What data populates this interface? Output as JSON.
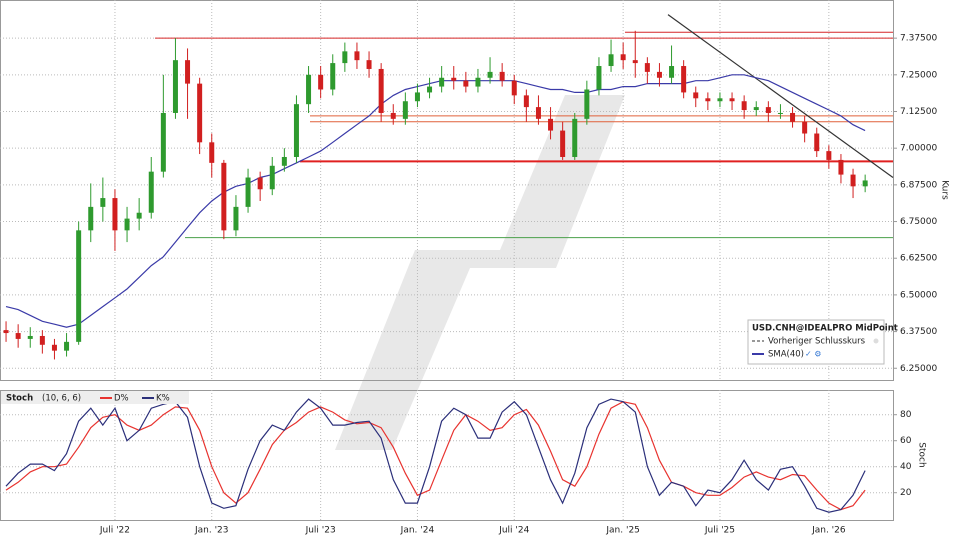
{
  "chart_data": [
    {
      "type": "candlestick",
      "name": "USD.CNH@IDEALPRO MidPoint",
      "previous_close_label": "Vorheriger Schlusskurs",
      "axis_title": "Kurs",
      "up_color": "#2e9a2e",
      "down_color": "#d11f1f",
      "categories": [
        null,
        null,
        null,
        null,
        null,
        null,
        null,
        null,
        null,
        "Juli '22",
        null,
        null,
        null,
        null,
        null,
        null,
        null,
        "Jan. '23",
        null,
        null,
        null,
        null,
        null,
        null,
        null,
        null,
        "Juli '23",
        null,
        null,
        null,
        null,
        null,
        null,
        null,
        "Jan. '24",
        null,
        null,
        null,
        null,
        null,
        null,
        null,
        "Juli '24",
        null,
        null,
        null,
        null,
        null,
        null,
        null,
        null,
        "Jan. '25",
        null,
        null,
        null,
        null,
        null,
        null,
        null,
        "Juli '25",
        null,
        null,
        null,
        null,
        null,
        null,
        null,
        null,
        "Jan. '26",
        null,
        null,
        null
      ],
      "open": [
        6.38,
        6.37,
        6.35,
        6.36,
        6.33,
        6.31,
        6.34,
        6.72,
        6.8,
        6.83,
        6.72,
        6.76,
        6.78,
        6.92,
        7.12,
        7.3,
        7.22,
        7.02,
        6.95,
        6.72,
        6.8,
        6.9,
        6.86,
        6.94,
        6.97,
        7.15,
        7.25,
        7.2,
        7.29,
        7.33,
        7.3,
        7.27,
        7.12,
        7.1,
        7.16,
        7.19,
        7.21,
        7.24,
        7.23,
        7.21,
        7.24,
        7.26,
        7.23,
        7.18,
        7.14,
        7.1,
        7.06,
        6.97,
        7.1,
        7.2,
        7.28,
        7.32,
        7.3,
        7.29,
        7.26,
        7.24,
        7.28,
        7.19,
        7.17,
        7.16,
        7.17,
        7.16,
        7.13,
        7.14,
        7.12,
        7.12,
        7.09,
        7.05,
        6.99,
        6.96,
        6.91,
        6.87
      ],
      "high": [
        6.41,
        6.4,
        6.39,
        6.38,
        6.35,
        6.37,
        6.75,
        6.88,
        6.9,
        6.86,
        6.8,
        6.83,
        6.97,
        7.25,
        7.375,
        7.34,
        7.24,
        7.05,
        6.96,
        6.84,
        6.93,
        6.92,
        6.97,
        7.0,
        7.18,
        7.28,
        7.28,
        7.32,
        7.36,
        7.36,
        7.33,
        7.29,
        7.15,
        7.19,
        7.22,
        7.24,
        7.28,
        7.28,
        7.26,
        7.27,
        7.31,
        7.29,
        7.25,
        7.2,
        7.18,
        7.14,
        7.09,
        7.12,
        7.23,
        7.31,
        7.37,
        7.36,
        7.4,
        7.31,
        7.29,
        7.35,
        7.3,
        7.21,
        7.19,
        7.19,
        7.19,
        7.18,
        7.16,
        7.16,
        7.15,
        7.14,
        7.11,
        7.07,
        7.01,
        6.98,
        6.93,
        6.91
      ],
      "low": [
        6.34,
        6.32,
        6.32,
        6.3,
        6.28,
        6.29,
        6.33,
        6.68,
        6.75,
        6.65,
        6.68,
        6.72,
        6.76,
        6.9,
        7.1,
        7.1,
        6.98,
        6.9,
        6.69,
        6.7,
        6.78,
        6.82,
        6.84,
        6.92,
        6.95,
        7.12,
        7.17,
        7.18,
        7.26,
        7.27,
        7.24,
        7.09,
        7.08,
        7.08,
        7.14,
        7.17,
        7.19,
        7.2,
        7.19,
        7.19,
        7.22,
        7.21,
        7.15,
        7.09,
        7.08,
        7.03,
        6.96,
        6.96,
        7.08,
        7.18,
        7.26,
        7.27,
        7.24,
        7.22,
        7.21,
        7.22,
        7.17,
        7.14,
        7.13,
        7.14,
        7.13,
        7.1,
        7.11,
        7.09,
        7.1,
        7.07,
        7.02,
        6.97,
        6.93,
        6.88,
        6.83,
        6.85
      ],
      "close": [
        6.37,
        6.35,
        6.36,
        6.33,
        6.31,
        6.34,
        6.72,
        6.8,
        6.83,
        6.72,
        6.76,
        6.78,
        6.92,
        7.12,
        7.3,
        7.22,
        7.02,
        6.95,
        6.72,
        6.8,
        6.9,
        6.86,
        6.94,
        6.97,
        7.15,
        7.25,
        7.2,
        7.29,
        7.33,
        7.3,
        7.27,
        7.12,
        7.1,
        7.16,
        7.19,
        7.21,
        7.24,
        7.23,
        7.21,
        7.24,
        7.26,
        7.23,
        7.18,
        7.14,
        7.1,
        7.06,
        6.97,
        7.1,
        7.2,
        7.28,
        7.32,
        7.3,
        7.29,
        7.26,
        7.24,
        7.28,
        7.19,
        7.17,
        7.16,
        7.17,
        7.16,
        7.13,
        7.14,
        7.12,
        7.12,
        7.09,
        7.05,
        6.99,
        6.96,
        6.91,
        6.87,
        6.89
      ],
      "series": [
        {
          "name": "SMA(40)",
          "color": "#3a3aa8",
          "values": [
            6.46,
            6.45,
            6.43,
            6.41,
            6.4,
            6.39,
            6.4,
            6.43,
            6.46,
            6.49,
            6.52,
            6.56,
            6.6,
            6.63,
            6.68,
            6.73,
            6.78,
            6.82,
            6.85,
            6.87,
            6.88,
            6.9,
            6.91,
            6.93,
            6.95,
            6.97,
            6.99,
            7.02,
            7.05,
            7.08,
            7.11,
            7.15,
            7.18,
            7.2,
            7.21,
            7.22,
            7.23,
            7.23,
            7.23,
            7.23,
            7.23,
            7.23,
            7.23,
            7.22,
            7.21,
            7.2,
            7.2,
            7.19,
            7.19,
            7.2,
            7.2,
            7.21,
            7.21,
            7.22,
            7.22,
            7.22,
            7.22,
            7.23,
            7.23,
            7.24,
            7.25,
            7.25,
            7.24,
            7.23,
            7.21,
            7.19,
            7.17,
            7.15,
            7.13,
            7.11,
            7.08,
            7.06
          ]
        }
      ],
      "levels": [
        {
          "value": 7.395,
          "color": "#d62728"
        },
        {
          "value": 7.375,
          "color": "#d62728"
        },
        {
          "value": 7.11,
          "color": "#e0603a"
        },
        {
          "value": 7.09,
          "color": "#e0603a"
        },
        {
          "value": 6.955,
          "color": "#e02020"
        },
        {
          "value": 6.695,
          "color": "#4aa04a"
        }
      ],
      "trendline": {
        "values": [
          7.455,
          6.9
        ],
        "color": "#333333"
      },
      "ylim": [
        6.21,
        7.505
      ],
      "yticks": [
        {
          "value": 6.25,
          "label": "6.25000"
        },
        {
          "value": 6.375,
          "label": "6.37500"
        },
        {
          "value": 6.5,
          "label": "6.50000"
        },
        {
          "value": 6.625,
          "label": "6.62500"
        },
        {
          "value": 6.75,
          "label": "6.75000"
        },
        {
          "value": 6.875,
          "label": "6.87500"
        },
        {
          "value": 7.0,
          "label": "7.00000"
        },
        {
          "value": 7.125,
          "label": "7.12500"
        },
        {
          "value": 7.25,
          "label": "7.25000"
        },
        {
          "value": 7.375,
          "label": "7.37500"
        }
      ],
      "grid": true
    },
    {
      "type": "line",
      "title": "Stoch",
      "subtitle": "(10, 6, 6)",
      "axis_title": "Stoch",
      "series": [
        {
          "name": "D%",
          "color": "#e8332f",
          "values": [
            22,
            28,
            36,
            40,
            40,
            42,
            55,
            70,
            78,
            80,
            72,
            68,
            72,
            80,
            86,
            85,
            68,
            40,
            20,
            12,
            20,
            38,
            57,
            68,
            74,
            82,
            86,
            82,
            76,
            73,
            74,
            70,
            55,
            35,
            18,
            22,
            45,
            68,
            80,
            75,
            68,
            70,
            80,
            84,
            72,
            52,
            30,
            25,
            40,
            65,
            85,
            90,
            88,
            70,
            45,
            28,
            25,
            20,
            18,
            18,
            24,
            32,
            36,
            32,
            30,
            34,
            33,
            22,
            12,
            7,
            10,
            22
          ]
        },
        {
          "name": "K%",
          "color": "#2b2f7a",
          "values": [
            25,
            35,
            42,
            42,
            37,
            50,
            75,
            85,
            72,
            85,
            60,
            68,
            85,
            88,
            90,
            78,
            40,
            12,
            8,
            10,
            38,
            60,
            72,
            68,
            82,
            92,
            85,
            72,
            72,
            74,
            75,
            62,
            30,
            12,
            12,
            40,
            75,
            85,
            80,
            62,
            62,
            82,
            90,
            80,
            55,
            30,
            12,
            35,
            70,
            88,
            92,
            90,
            82,
            40,
            18,
            28,
            25,
            10,
            22,
            20,
            30,
            45,
            30,
            22,
            38,
            40,
            25,
            8,
            5,
            7,
            18,
            37
          ]
        }
      ],
      "ylim": [
        -1,
        99
      ],
      "yticks": [
        20,
        40,
        60,
        80
      ],
      "grid": true
    }
  ]
}
